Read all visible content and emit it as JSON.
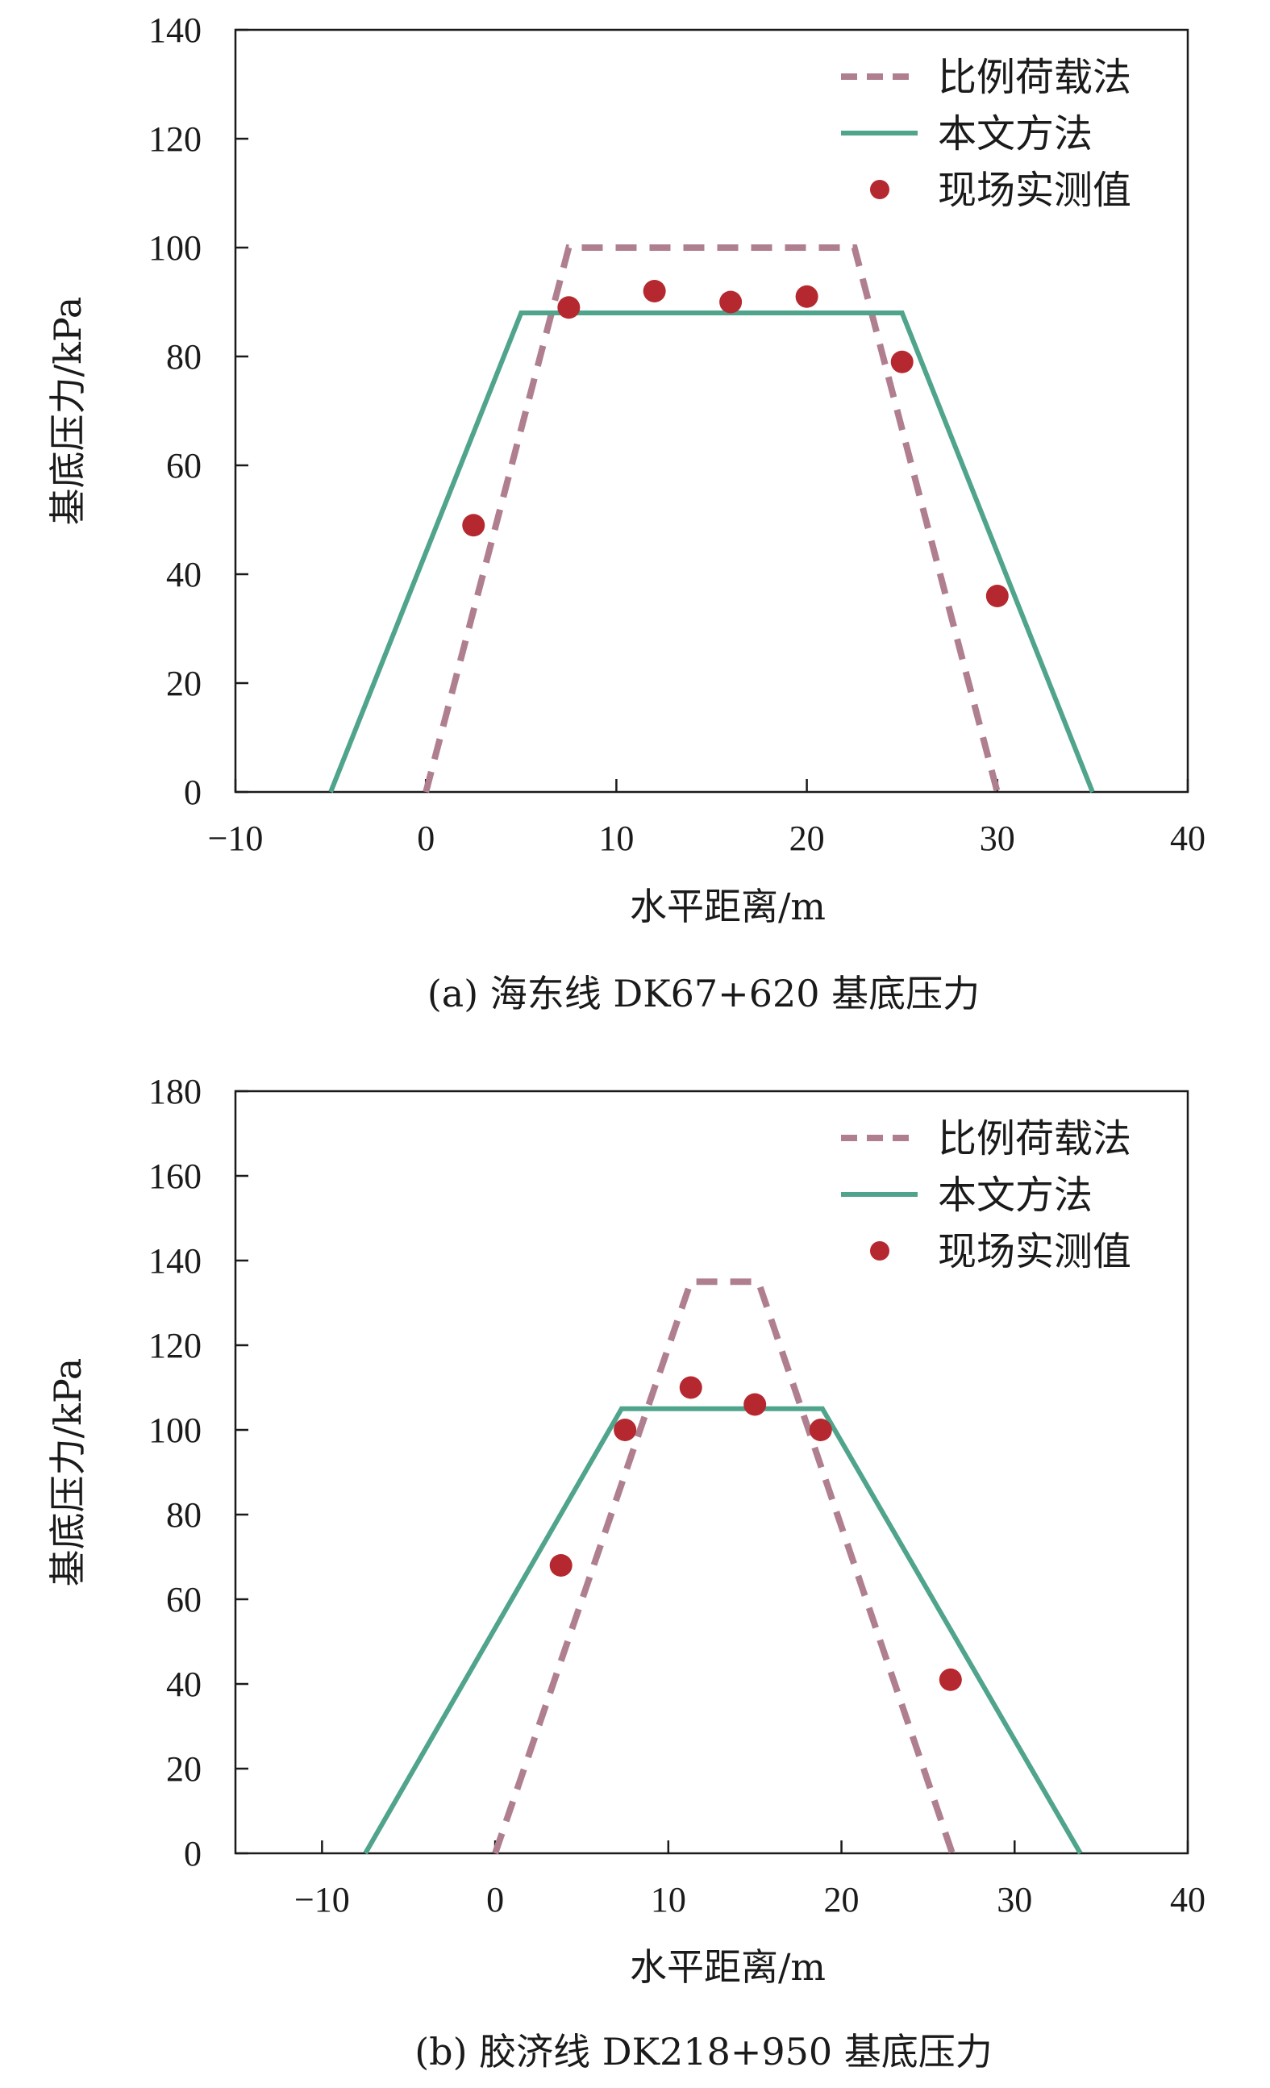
{
  "colors": {
    "proportional": "#b07f8f",
    "method": "#4fa48b",
    "measured": "#b5282f",
    "axis": "#1a1a1a"
  },
  "chart_data": [
    {
      "type": "line",
      "caption": "(a) 海东线 DK67+620 基底压力",
      "xlabel": "水平距离/m",
      "ylabel": "基底压力/kPa",
      "xlim": [
        -10,
        40
      ],
      "ylim": [
        0,
        140
      ],
      "xticks": [
        -10,
        0,
        10,
        20,
        30,
        40
      ],
      "xtick_labels": [
        "−10",
        "0",
        "10",
        "20",
        "30",
        "40"
      ],
      "yticks": [
        0,
        20,
        40,
        60,
        80,
        100,
        120,
        140
      ],
      "grid": false,
      "legend_position": "top-right",
      "series": [
        {
          "name": "比例荷载法",
          "kind": "dashed-line",
          "x": [
            0,
            7.5,
            22.5,
            30
          ],
          "y": [
            0,
            100,
            100,
            0
          ]
        },
        {
          "name": "本文方法",
          "kind": "line",
          "x": [
            -5,
            5,
            25,
            35
          ],
          "y": [
            0,
            88,
            88,
            0
          ]
        },
        {
          "name": "现场实测值",
          "kind": "scatter",
          "x": [
            2.5,
            7.5,
            12,
            16,
            20,
            25,
            30
          ],
          "y": [
            49,
            89,
            92,
            90,
            91,
            79,
            36
          ]
        }
      ]
    },
    {
      "type": "line",
      "caption": "(b) 胶济线 DK218+950 基底压力",
      "xlabel": "水平距离/m",
      "ylabel": "基底压力/kPa",
      "xlim": [
        -15,
        40
      ],
      "ylim": [
        0,
        180
      ],
      "xticks": [
        -10,
        0,
        10,
        20,
        30,
        40
      ],
      "xtick_labels": [
        "−10",
        "0",
        "10",
        "20",
        "30",
        "40"
      ],
      "yticks": [
        0,
        20,
        40,
        60,
        80,
        100,
        120,
        140,
        160,
        180
      ],
      "grid": false,
      "legend_position": "top-right",
      "series": [
        {
          "name": "比例荷载法",
          "kind": "dashed-line",
          "x": [
            0,
            11.3,
            15.2,
            26.4
          ],
          "y": [
            0,
            135,
            135,
            0
          ]
        },
        {
          "name": "本文方法",
          "kind": "line",
          "x": [
            -7.5,
            7.3,
            18.9,
            33.8
          ],
          "y": [
            0,
            105,
            105,
            0
          ]
        },
        {
          "name": "现场实测值",
          "kind": "scatter",
          "x": [
            3.8,
            7.5,
            11.3,
            15,
            18.8,
            26.3
          ],
          "y": [
            68,
            100,
            110,
            106,
            100,
            41
          ]
        }
      ]
    }
  ]
}
